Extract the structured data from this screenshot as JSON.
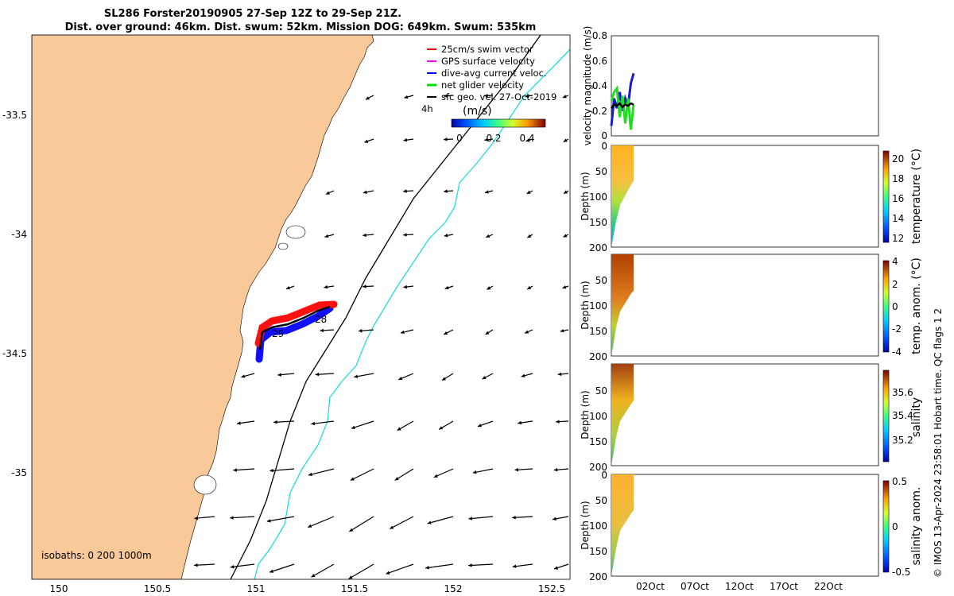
{
  "title": {
    "line1": "SL286 Forster20190905 27-Sep 12Z to 29-Sep 21Z.",
    "line2": "Dist. over ground: 46km. Dist. swum: 52km. Mission DOG: 649km. Swum: 535km"
  },
  "map": {
    "lon_ticks": [
      "150",
      "150.5",
      "151",
      "151.5",
      "152",
      "152.5"
    ],
    "lat_ticks": [
      "-33.5",
      "-34",
      "-34.5",
      "-35"
    ],
    "isobath_label": "isobaths: 0   200  1000m",
    "day_labels": [
      "28",
      "29"
    ],
    "scale_label": "4h",
    "legend": [
      {
        "label": "25cm/s swim vector",
        "color": "#ff0000"
      },
      {
        "label": "GPS surface velocity",
        "color": "#ff00ff"
      },
      {
        "label": "dive-avg current veloc.",
        "color": "#0000ff"
      },
      {
        "label": "net glider velocity",
        "color": "#00dd00"
      },
      {
        "label": "sfc geo. vel. 27-Oct-2019",
        "color": "#000000"
      }
    ],
    "colorbar": {
      "label": "(m/s)",
      "ticks": [
        "0",
        "0.2",
        "0.4"
      ],
      "range": [
        -0.05,
        0.55
      ]
    },
    "colors": {
      "land": "#f9c99a",
      "iso200": "#000000",
      "iso1000": "#22dddd"
    }
  },
  "panels": {
    "x_ticks": [
      "02Oct",
      "07Oct",
      "12Oct",
      "17Oct",
      "22Oct"
    ],
    "velocity": {
      "ylabel": "velocity magnitude (m/s)",
      "y_ticks": [
        "0",
        "0.2",
        "0.4",
        "0.6",
        "0.8"
      ]
    },
    "depth_ylabel": "Depth (m)",
    "depth_ticks": [
      "0",
      "50",
      "100",
      "150",
      "200"
    ],
    "temperature": {
      "label": "temperature (°C)",
      "ticks": [
        "20",
        "18",
        "16",
        "14",
        "12"
      ]
    },
    "temp_anom": {
      "label": "temp. anom. (°C)",
      "ticks": [
        "4",
        "2",
        "0",
        "-2",
        "-4"
      ]
    },
    "salinity": {
      "label": "salinity",
      "ticks": [
        "35.6",
        "35.4",
        "35.2"
      ]
    },
    "sal_anom": {
      "label": "salinity anom.",
      "ticks": [
        "0.5",
        "0",
        "-0.5"
      ]
    }
  },
  "footer": "© IMOS 13-Apr-2024 23:58:01 Hobart time. QC flags 1  2",
  "chart_data": [
    {
      "type": "scatter",
      "title": "SL286 Forster20190905 27-Sep 12Z to 29-Sep 21Z.",
      "xlabel": "",
      "ylabel": "",
      "xlim": [
        149.9,
        152.6
      ],
      "ylim": [
        -35.45,
        -33.2
      ],
      "series": [
        {
          "name": "glider track",
          "x": [
            151.03,
            151.05,
            151.1,
            151.18,
            151.25,
            151.3,
            151.35,
            151.39
          ],
          "y": [
            -34.4,
            -34.39,
            -34.38,
            -34.36,
            -34.34,
            -34.32,
            -34.3,
            -34.29
          ]
        }
      ]
    },
    {
      "type": "line",
      "title": "",
      "xlabel": "",
      "ylabel": "velocity magnitude (m/s)",
      "ylim": [
        0,
        0.8
      ],
      "series": [
        {
          "name": "dive-avg current veloc.",
          "values": [
            0.08,
            0.3,
            0.22,
            0.35,
            0.2,
            0.3,
            0.24,
            0.42,
            0.5
          ]
        },
        {
          "name": "net glider velocity",
          "values": [
            0.28,
            0.35,
            0.38,
            0.15,
            0.32,
            0.1,
            0.3,
            0.05,
            0.25
          ]
        },
        {
          "name": "GPS surface velocity",
          "values": [
            0.22,
            0.25,
            0.24,
            0.26,
            0.23,
            0.25,
            0.24,
            0.26,
            0.25
          ]
        }
      ]
    }
  ]
}
